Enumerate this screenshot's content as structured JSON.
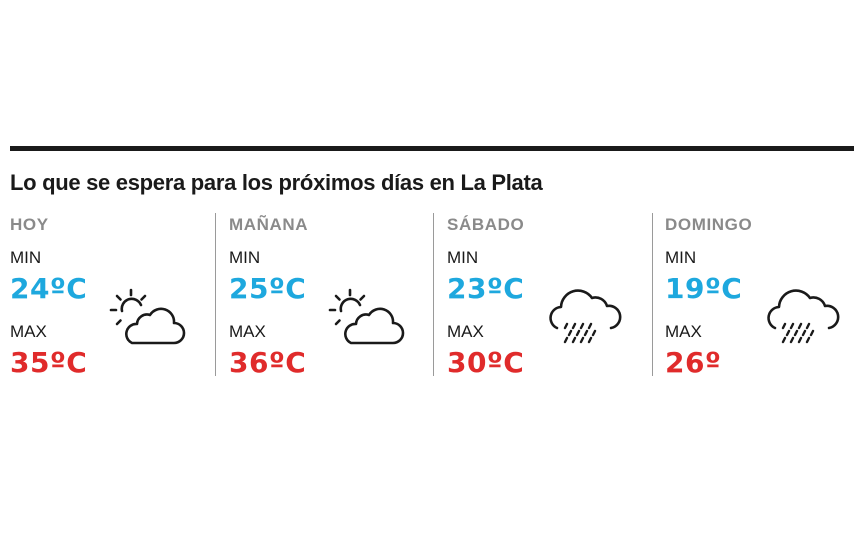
{
  "headline": "Lo que se espera para los próximos días en La Plata",
  "labels": {
    "min": "MIN",
    "max": "MAX"
  },
  "colors": {
    "min": "#1ea8de",
    "max": "#e02b2b",
    "day_name": "#8a8a8a",
    "rule": "#1a1a1a"
  },
  "days": [
    {
      "name": "HOY",
      "min": "24ºC",
      "max": "35ºC",
      "icon": "partly-cloudy-icon"
    },
    {
      "name": "MAÑANA",
      "min": "25ºC",
      "max": "36ºC",
      "icon": "partly-cloudy-icon"
    },
    {
      "name": "SÁBADO",
      "min": "23ºC",
      "max": "30ºC",
      "icon": "rain-cloud-icon"
    },
    {
      "name": "DOMINGO",
      "min": "19ºC",
      "max": "26º",
      "icon": "rain-cloud-icon"
    }
  ]
}
